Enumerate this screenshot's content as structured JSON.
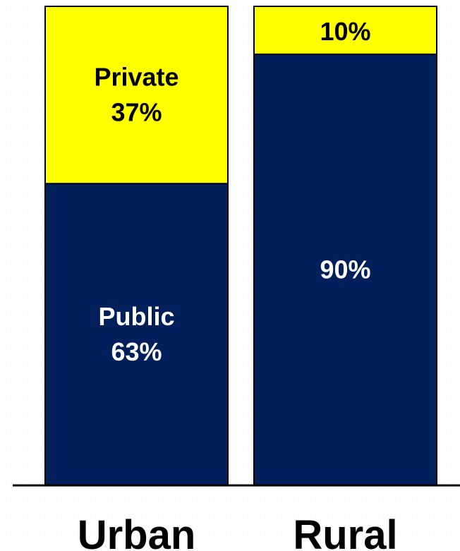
{
  "chart_data": {
    "type": "bar",
    "stacked": true,
    "title": "",
    "xlabel": "",
    "ylabel": "",
    "ylim": [
      0,
      100
    ],
    "categories": [
      "Urban",
      "Rural"
    ],
    "series": [
      {
        "key": "public",
        "values": [
          63,
          90
        ],
        "color": "#001f5b",
        "text_color": "#ffffff",
        "labels": [
          [
            "Public",
            "63%"
          ],
          [
            "90%"
          ]
        ]
      },
      {
        "key": "private",
        "values": [
          37,
          10
        ],
        "color": "#ffff00",
        "text_color": "#000000",
        "labels": [
          [
            "Private",
            "37%"
          ],
          [
            "10%"
          ]
        ]
      }
    ],
    "totals": [
      100,
      100
    ],
    "grid": false,
    "legend": "none"
  },
  "colors": {
    "axis": "#000000",
    "bar_outline": "#000000"
  }
}
